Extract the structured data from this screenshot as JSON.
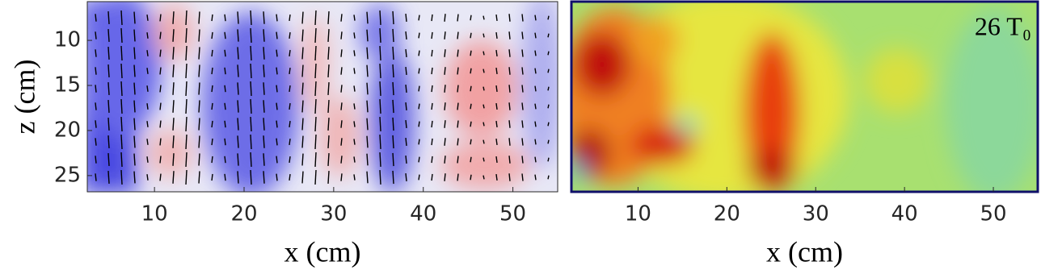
{
  "chart_data": [
    {
      "type": "heatmap",
      "xlabel": "x  (cm)",
      "ylabel": "z  (cm)",
      "xlim": [
        2.5,
        55
      ],
      "ylim": [
        5.7,
        26.8
      ],
      "y_reversed": true,
      "xticks": [
        10,
        20,
        30,
        40,
        50
      ],
      "yticks": [
        10,
        15,
        20,
        25
      ]
    },
    {
      "type": "heatmap",
      "xlabel": "x  (cm)",
      "xlim": [
        2.5,
        55
      ],
      "xticks": [
        10,
        20,
        30,
        40,
        50
      ],
      "annotation": "26 T₀"
    }
  ]
}
